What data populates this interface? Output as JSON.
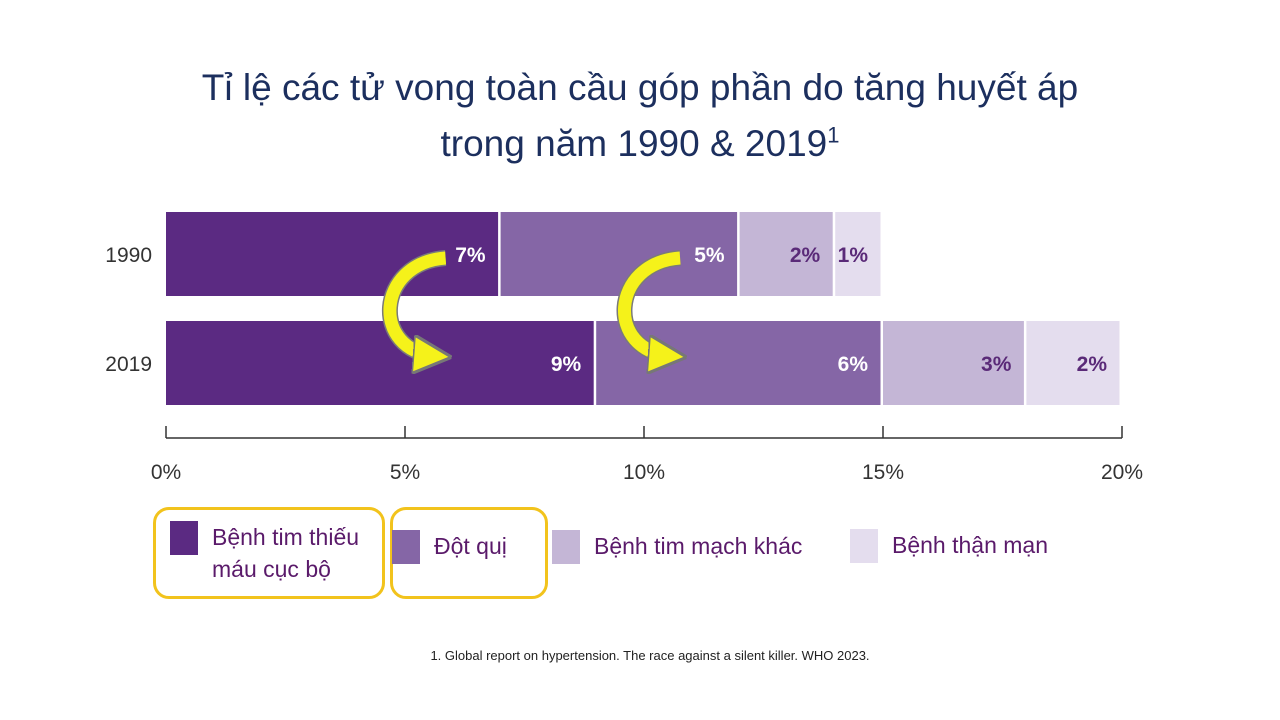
{
  "title": {
    "line1": "Tỉ lệ các tử vong toàn cầu góp phần do tăng huyết áp",
    "line2": "trong năm 1990 & 2019",
    "superscript": "1"
  },
  "chart_data": {
    "type": "bar",
    "orientation": "horizontal",
    "stacked": true,
    "categories": [
      "1990",
      "2019"
    ],
    "series": [
      {
        "name": "Bệnh tim thiếu máu cục bộ",
        "values": [
          7,
          9
        ],
        "labels": [
          "7%",
          "9%"
        ],
        "color": "#5b2a82"
      },
      {
        "name": "Đột quị",
        "values": [
          5,
          6
        ],
        "labels": [
          "5%",
          "6%"
        ],
        "color": "#8566a6"
      },
      {
        "name": "Bệnh tim mạch khác",
        "values": [
          2,
          3
        ],
        "labels": [
          "2%",
          "3%"
        ],
        "color": "#c4b6d6"
      },
      {
        "name": "Bệnh thận mạn",
        "values": [
          1,
          2
        ],
        "labels": [
          "1%",
          "2%"
        ],
        "color": "#e4ddee"
      }
    ],
    "xlim": [
      0,
      20
    ],
    "xticks": [
      0,
      5,
      10,
      15,
      20
    ],
    "xtick_labels": [
      "0%",
      "5%",
      "10%",
      "15%",
      "20%"
    ],
    "grid": false,
    "legend_position": "bottom",
    "annotations": [
      {
        "type": "curved-arrow",
        "color": "#f5f21a",
        "from_series": "Bệnh tim thiếu máu cục bộ",
        "from": "1990",
        "to": "2019"
      },
      {
        "type": "curved-arrow",
        "color": "#f5f21a",
        "from_series": "Đột quị",
        "from": "1990",
        "to": "2019"
      }
    ],
    "highlighted_legend_items": [
      "Bệnh tim thiếu máu cục bộ",
      "Đột quị"
    ]
  },
  "legend": [
    {
      "lines": [
        "Bệnh tim thiếu",
        "máu cục bộ"
      ],
      "color": "#5b2a82"
    },
    {
      "lines": [
        "Đột quị"
      ],
      "color": "#8566a6"
    },
    {
      "lines": [
        "Bệnh tim mạch khác"
      ],
      "color": "#c4b6d6"
    },
    {
      "lines": [
        "Bệnh thận mạn"
      ],
      "color": "#e4ddee"
    }
  ],
  "footnote": "1. Global report  on hypertension.  The race against a silent killer. WHO 2023."
}
